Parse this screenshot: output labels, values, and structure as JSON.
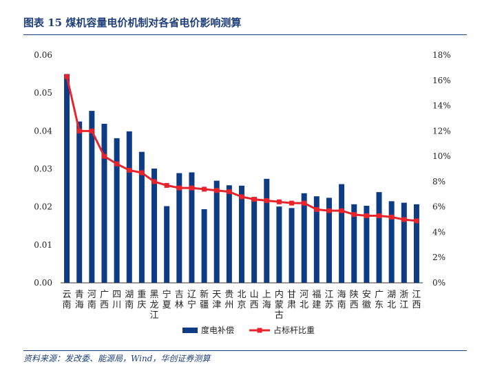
{
  "title": "图表 15   煤机容量电价机制对各省电价影响测算",
  "source": "资料来源：发改委、能源局，Wind，华创证券测算",
  "colors": {
    "bar": "#0d3b84",
    "line": "#e8232b",
    "title": "#1f3f7a"
  },
  "chart_data": {
    "type": "bar",
    "categories": [
      "云南",
      "青海",
      "河南",
      "广西",
      "四川",
      "湖南",
      "重庆",
      "黑龙江",
      "宁夏",
      "吉林",
      "辽宁",
      "新疆",
      "天津",
      "贵州",
      "北京",
      "山西",
      "上海",
      "内蒙古",
      "甘肃",
      "河北",
      "福建",
      "江苏",
      "海南",
      "陕西",
      "安徽",
      "广东",
      "湖北",
      "浙江",
      "江西"
    ],
    "series": [
      {
        "name": "度电补偿",
        "type": "bar",
        "axis": "left",
        "values": [
          0.055,
          0.0425,
          0.0453,
          0.0419,
          0.0381,
          0.0399,
          0.0345,
          0.0301,
          0.0202,
          0.0289,
          0.0291,
          0.0194,
          0.0269,
          0.0257,
          0.0256,
          0.0226,
          0.0274,
          0.0201,
          0.0197,
          0.0236,
          0.0228,
          0.0224,
          0.026,
          0.0207,
          0.0203,
          0.0239,
          0.0215,
          0.0211,
          0.0207
        ]
      },
      {
        "name": "占标杆比重",
        "type": "line",
        "axis": "right",
        "values": [
          16.3,
          12.0,
          12.0,
          10.0,
          9.4,
          8.9,
          8.7,
          8.0,
          7.7,
          7.5,
          7.5,
          7.4,
          7.3,
          7.2,
          6.8,
          6.6,
          6.5,
          6.4,
          6.3,
          6.3,
          5.8,
          5.7,
          5.7,
          5.4,
          5.3,
          5.3,
          5.2,
          5.0,
          4.9
        ]
      }
    ],
    "yleft": {
      "lim": [
        0,
        0.06
      ],
      "ticks": [
        "0.00",
        "0.01",
        "0.02",
        "0.03",
        "0.04",
        "0.05",
        "0.06"
      ]
    },
    "yright": {
      "lim": [
        0,
        18
      ],
      "ticks": [
        "0%",
        "2%",
        "4%",
        "6%",
        "8%",
        "10%",
        "12%",
        "14%",
        "16%",
        "18%"
      ]
    },
    "legend": {
      "placement": "bottom"
    },
    "grid": false
  }
}
